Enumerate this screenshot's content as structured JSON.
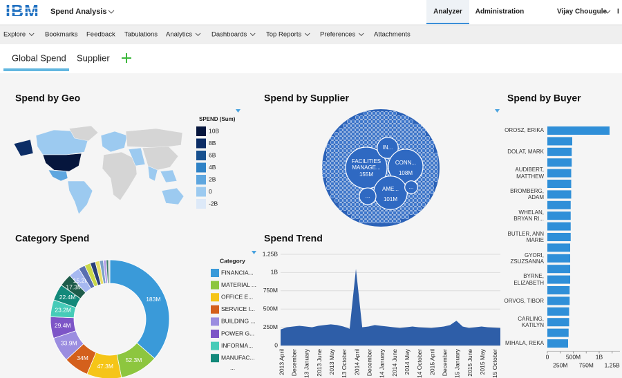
{
  "header": {
    "logo": "IBM",
    "app": "Spend Analysis",
    "tabs": [
      "Analyzer",
      "Administration"
    ],
    "user": "Vijay Chougule",
    "extra": "I"
  },
  "nav": [
    "Explore",
    "Bookmarks",
    "Feedback",
    "Tabulations",
    "Analytics",
    "Dashboards",
    "Top Reports",
    "Preferences",
    "Attachments"
  ],
  "tabs": [
    "Global Spend",
    "Supplier"
  ],
  "chart_data": [
    {
      "type": "map",
      "title": "Spend by Geo",
      "legend_title": "SPEND (Sum)",
      "legend": [
        {
          "value": 10000000000,
          "label": "10B",
          "color": "#06163d"
        },
        {
          "value": 8000000000,
          "label": "8B",
          "color": "#0c2d66"
        },
        {
          "value": 6000000000,
          "label": "6B",
          "color": "#17508f"
        },
        {
          "value": 4000000000,
          "label": "4B",
          "color": "#2f82c6"
        },
        {
          "value": 2000000000,
          "label": "2B",
          "color": "#5ea6df"
        },
        {
          "value": 0,
          "label": "0",
          "color": "#9ccaf0"
        },
        {
          "value": -2000000000,
          "label": "-2B",
          "color": "#dde9f8"
        }
      ]
    },
    {
      "type": "bubble",
      "title": "Spend by Supplier",
      "categories": [
        "FACILITIES MANAGE...",
        "IN...",
        "CONN...",
        "AME...",
        "...",
        "..."
      ],
      "values": [
        155000000,
        40000000,
        108000000,
        101000000,
        25000000,
        15000000
      ],
      "value_labels": [
        "155M",
        null,
        "108M",
        "101M",
        null,
        null
      ],
      "color": "#2f69c2"
    },
    {
      "type": "hbar",
      "title": "Spend by Buyer",
      "categories": [
        "OROSZ, ERIKA",
        null,
        "DOLAT, MARK",
        null,
        "AUDIBERT, MATTHEW",
        null,
        "BROMBERG, ADAM",
        null,
        "WHELAN, BRYAN RI...",
        null,
        "BUTLER, ANN MARIE",
        null,
        "GYORI, ZSUZSANNA",
        null,
        "BYRNE, ELIZABETH",
        null,
        "ORVOS, TIBOR",
        null,
        "CARLING, KATILYN",
        null,
        "MIHALA, REKA"
      ],
      "values": [
        1200000000,
        480000000,
        470000000,
        470000000,
        460000000,
        460000000,
        460000000,
        450000000,
        450000000,
        450000000,
        450000000,
        440000000,
        440000000,
        440000000,
        440000000,
        430000000,
        430000000,
        420000000,
        420000000,
        410000000,
        400000000
      ],
      "color": "#2f8fd8",
      "xlim": [
        0,
        1400000000
      ],
      "xticks": [
        0,
        {
          "value": 250000000,
          "label": "250M"
        },
        {
          "value": 500000000,
          "label": "500M"
        },
        {
          "value": 750000000,
          "label": "750M"
        },
        {
          "value": 1000000000,
          "label": "1B"
        },
        {
          "value": 1250000000,
          "label": "1.25B"
        }
      ]
    },
    {
      "type": "donut",
      "title": "Category Spend",
      "legend_title": "Category",
      "legend_more": "...",
      "categories": [
        "FINANCIA...",
        "MATERIAL ...",
        "OFFICE E...",
        "SERVICE I...",
        "BUILDING ...",
        "POWER G...",
        "INFORMA...",
        "MANUFAC...",
        null,
        null,
        null,
        null,
        null,
        null,
        null,
        null,
        null,
        null
      ],
      "values": [
        183000000,
        52300000,
        47300000,
        34000000,
        33900000,
        29400000,
        23200000,
        22400000,
        17300000,
        15200000,
        9000000,
        8000000,
        7000000,
        6000000,
        5000000,
        4000000,
        3000000,
        2000000
      ],
      "value_labels": [
        "183M",
        "52.3M",
        "47.3M",
        "34M",
        "33.9M",
        "29.4M",
        "23.2M",
        "22.4M",
        "17.3M",
        "15.2M",
        null,
        null,
        null,
        null,
        null,
        null,
        null,
        null
      ],
      "colors": [
        "#3a9ad9",
        "#8dc63f",
        "#f5c518",
        "#d4601c",
        "#9b8de0",
        "#7d55c7",
        "#46cbb8",
        "#13897a",
        "#1e5c4a",
        "#a6b8f0",
        "#5a6fb0",
        "#c9d84a",
        "#2a3f7a",
        "#e8e06a",
        "#7aa0c8",
        "#b5a0e8",
        "#3c7d6a",
        "#d0d0d0"
      ]
    },
    {
      "type": "area",
      "title": "Spend Trend",
      "categories": [
        "2013 April",
        null,
        "December",
        null,
        "2013 January",
        null,
        "2013 June",
        null,
        "2013 May",
        null,
        "2013 October",
        null,
        "2014 April",
        null,
        "December",
        null,
        "2014 January",
        null,
        "2014 June",
        null,
        "2014 May",
        null,
        "2014 October",
        null,
        "2015 April",
        null,
        "December",
        null,
        "2015 January",
        null,
        "2015 June",
        null,
        "2015 May",
        null,
        "2015 October",
        null
      ],
      "values": [
        220000000,
        250000000,
        260000000,
        270000000,
        260000000,
        250000000,
        270000000,
        280000000,
        290000000,
        280000000,
        260000000,
        230000000,
        1050000000,
        250000000,
        260000000,
        280000000,
        270000000,
        260000000,
        250000000,
        240000000,
        250000000,
        260000000,
        250000000,
        245000000,
        240000000,
        250000000,
        260000000,
        280000000,
        340000000,
        260000000,
        240000000,
        250000000,
        260000000,
        250000000,
        245000000,
        240000000
      ],
      "color": "#2e5ea8",
      "ylim": [
        0,
        1250000000
      ],
      "grid": true,
      "yticks": [
        0,
        {
          "value": 250000000,
          "label": "250M"
        },
        {
          "value": 500000000,
          "label": "500M"
        },
        {
          "value": 750000000,
          "label": "750M"
        },
        {
          "value": 1000000000,
          "label": "1B"
        },
        {
          "value": 1250000000,
          "label": "1.25B"
        }
      ]
    }
  ]
}
